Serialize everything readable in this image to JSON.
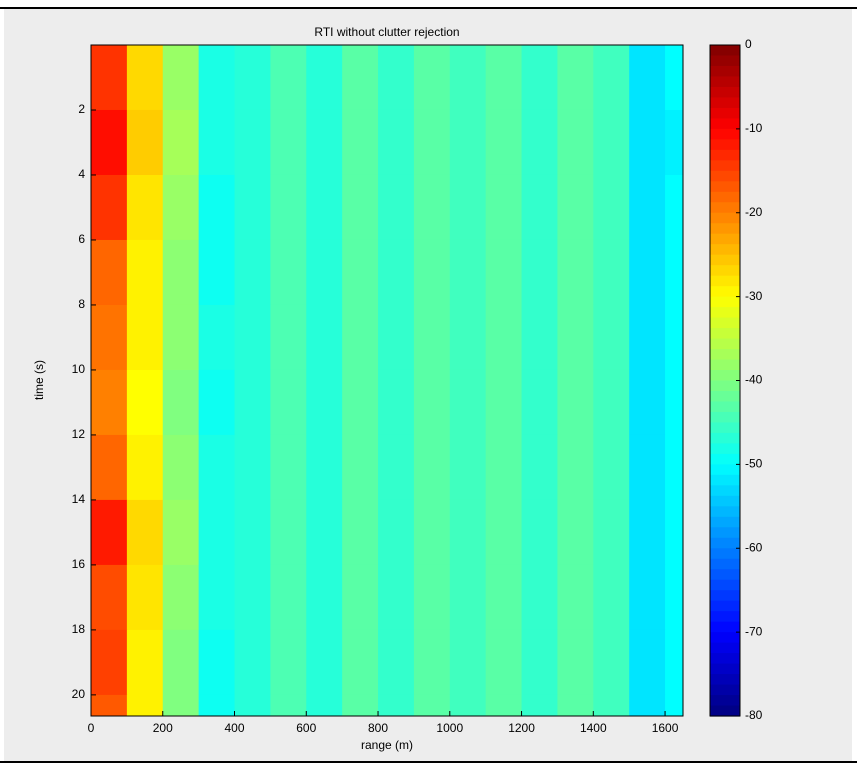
{
  "chart_data": {
    "type": "heatmap",
    "title": "RTI without clutter rejection",
    "x_label": "range (m)",
    "y_label": "time (s)",
    "xbins": [
      0,
      100,
      200,
      300,
      400,
      500,
      600,
      700,
      800,
      900,
      1000,
      1100,
      1200,
      1300,
      1400,
      1500,
      1600,
      1650
    ],
    "ybins": [
      0,
      2,
      4,
      6,
      8,
      10,
      12,
      14,
      16,
      18,
      20,
      20.65
    ],
    "z": [
      [
        -14,
        -27,
        -38,
        -48,
        -47,
        -44,
        -47,
        -43,
        -46,
        -43,
        -45,
        -43,
        -46,
        -43,
        -45,
        -52,
        -50
      ],
      [
        -11,
        -26,
        -37,
        -48,
        -47,
        -44,
        -47,
        -43,
        -46,
        -43,
        -45,
        -43,
        -46,
        -43,
        -45,
        -52,
        -51
      ],
      [
        -14,
        -28,
        -38,
        -49,
        -47,
        -44,
        -47,
        -43,
        -46,
        -43,
        -45,
        -43,
        -46,
        -43,
        -45,
        -52,
        -50
      ],
      [
        -18,
        -29,
        -39,
        -49,
        -47,
        -44,
        -47,
        -43,
        -46,
        -43,
        -45,
        -43,
        -46,
        -43,
        -45,
        -52,
        -50
      ],
      [
        -19,
        -29,
        -39,
        -48,
        -47,
        -44,
        -47,
        -43,
        -46,
        -43,
        -45,
        -43,
        -46,
        -43,
        -45,
        -52,
        -50
      ],
      [
        -20,
        -30,
        -40,
        -49,
        -47,
        -44,
        -47,
        -43,
        -46,
        -43,
        -45,
        -43,
        -46,
        -43,
        -45,
        -52,
        -50
      ],
      [
        -18,
        -29,
        -39,
        -48,
        -47,
        -44,
        -47,
        -43,
        -46,
        -43,
        -45,
        -43,
        -46,
        -43,
        -45,
        -52,
        -50
      ],
      [
        -12,
        -27,
        -38,
        -48,
        -47,
        -44,
        -47,
        -43,
        -46,
        -43,
        -45,
        -43,
        -46,
        -43,
        -45,
        -52,
        -50
      ],
      [
        -16,
        -28,
        -39,
        -48,
        -47,
        -44,
        -47,
        -43,
        -46,
        -43,
        -45,
        -43,
        -46,
        -43,
        -45,
        -52,
        -50
      ],
      [
        -15,
        -29,
        -40,
        -49,
        -47,
        -44,
        -47,
        -43,
        -46,
        -43,
        -45,
        -43,
        -46,
        -43,
        -45,
        -52,
        -50
      ],
      [
        -17,
        -29,
        -40,
        -49,
        -47,
        -44,
        -47,
        -43,
        -46,
        -43,
        -45,
        -43,
        -46,
        -43,
        -45,
        -52,
        -50
      ]
    ],
    "xlim": [
      0,
      1650
    ],
    "ylim": [
      0,
      20.65
    ],
    "y_reversed": true,
    "xticks": [
      0,
      200,
      400,
      600,
      800,
      1000,
      1200,
      1400,
      1600
    ],
    "yticks": [
      2,
      4,
      6,
      8,
      10,
      12,
      14,
      16,
      18,
      20
    ],
    "clim": [
      -80,
      0
    ],
    "cticks": [
      0,
      -10,
      -20,
      -30,
      -40,
      -50,
      -60,
      -70,
      -80
    ],
    "colormap": "jet"
  }
}
